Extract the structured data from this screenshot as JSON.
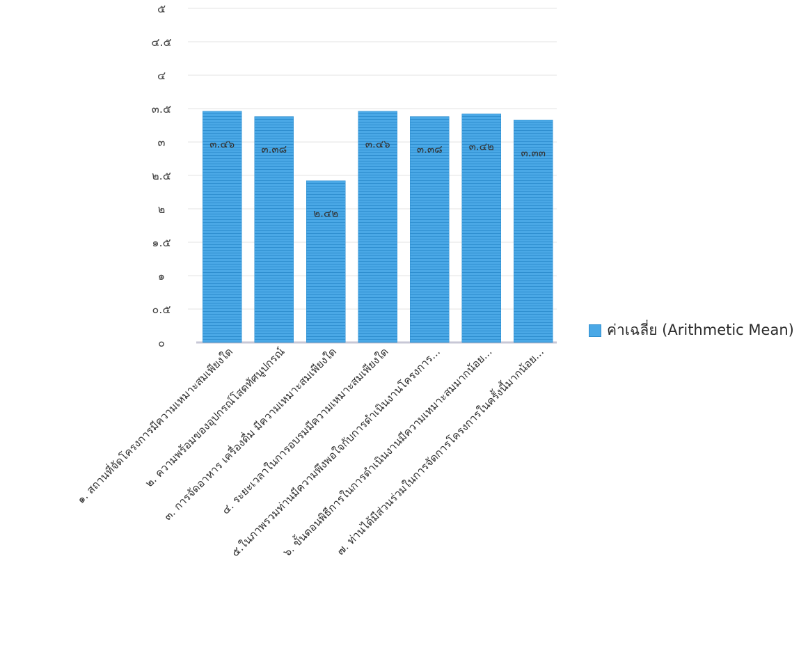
{
  "chart_data": {
    "type": "bar",
    "title": "",
    "xlabel": "",
    "ylabel": "",
    "ylim": [
      0,
      5
    ],
    "y_ticks": [
      {
        "value": 0,
        "label": "๐"
      },
      {
        "value": 0.5,
        "label": "๐.๕"
      },
      {
        "value": 1,
        "label": "๑"
      },
      {
        "value": 1.5,
        "label": "๑.๕"
      },
      {
        "value": 2,
        "label": "๒"
      },
      {
        "value": 2.5,
        "label": "๒.๕"
      },
      {
        "value": 3,
        "label": "๓"
      },
      {
        "value": 3.5,
        "label": "๓.๕"
      },
      {
        "value": 4,
        "label": "๔"
      },
      {
        "value": 4.5,
        "label": "๔.๕"
      },
      {
        "value": 5,
        "label": "๕"
      }
    ],
    "grid": true,
    "legend_position": "right",
    "categories": [
      "๑. สถานที่จัดโครงการมีความเหมาะสมเพียงใด",
      "๒. ความพร้อมของอุปกรณ์โสตทัศนูปกรณ์",
      "๓. การจัดอาหาร เครื่องดื่ม มีความเหมาะสมเพียงใด",
      "๔. ระยะเวลาในการอบรมมีความเหมาะสมเพียงใด",
      "๕.ในภาพรวมท่านมีความพึงพอใจกับการดำเนินงานโครงการ...",
      "๖. ขั้นตอนพิธีการในการดำเนินงานมีความเหมาะสมมากน้อย...",
      "๗. ท่านได้มีส่วนร่วมในการจัดการโครงการในครั้งนี้มากน้อย..."
    ],
    "series": [
      {
        "name": "ค่าเฉลี่ย (Arithmetic Mean)",
        "color": "#4aa8e6",
        "values": [
          3.46,
          3.38,
          2.42,
          3.46,
          3.38,
          3.42,
          3.33
        ],
        "data_labels": [
          "๓.๔๖",
          "๓.๓๘",
          "๒.๔๒",
          "๓.๔๖",
          "๓.๓๘",
          "๓.๔๒",
          "๓.๓๓"
        ]
      }
    ]
  }
}
